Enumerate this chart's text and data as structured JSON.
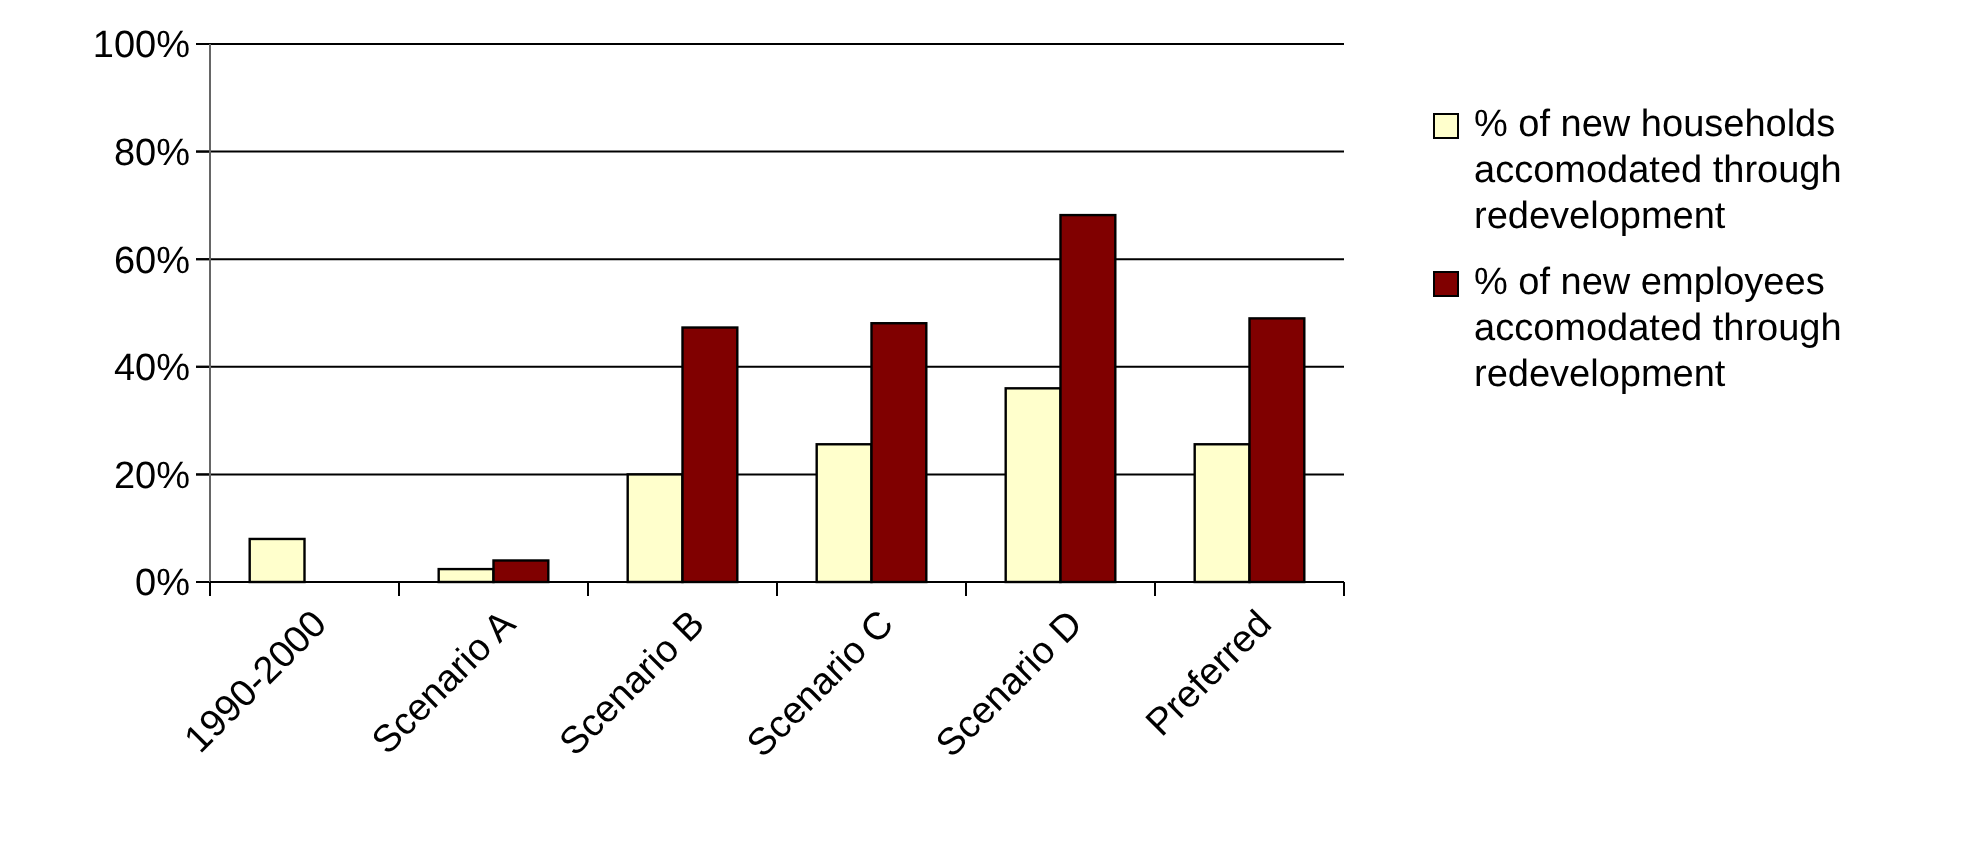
{
  "chart_data": {
    "type": "bar",
    "categories": [
      "1990-2000",
      "Scenario A",
      "Scenario B",
      "Scenario C",
      "Scenario D",
      "Preferred"
    ],
    "series": [
      {
        "name": "% of new households accomodated through redevelopment",
        "color": "#ffffcc",
        "values": [
          8,
          2.4,
          20,
          25.6,
          36,
          25.6
        ]
      },
      {
        "name": "% of new employees accomodated through redevelopment",
        "color": "#800000",
        "values": [
          null,
          4,
          47.3,
          48.1,
          68.2,
          49
        ]
      }
    ],
    "ylim": [
      0,
      100
    ],
    "yticks": [
      {
        "value": 0,
        "label": "0%"
      },
      {
        "value": 20,
        "label": "20%"
      },
      {
        "value": 40,
        "label": "40%"
      },
      {
        "value": 60,
        "label": "60%"
      },
      {
        "value": 80,
        "label": "80%"
      },
      {
        "value": 100,
        "label": "100%"
      }
    ],
    "grid": "y",
    "legend": "right"
  }
}
